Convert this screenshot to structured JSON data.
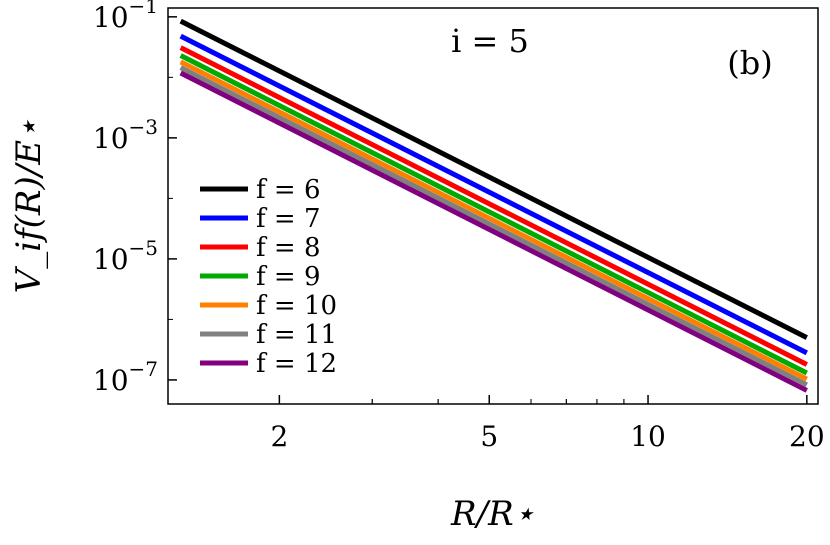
{
  "chart_data": {
    "type": "line",
    "xscale": "log",
    "yscale": "log",
    "xlim": [
      1.23,
      21
    ],
    "ylim": [
      4e-08,
      0.14
    ],
    "x": [
      1.3,
      20
    ],
    "x_tick_values": [
      2,
      5,
      10,
      20
    ],
    "x_tick_labels": [
      "2",
      "5",
      "10",
      "20"
    ],
    "y_tick_values": [
      0.1,
      0.001,
      1e-05,
      1e-07
    ],
    "y_tick_bases": [
      "10",
      "10",
      "10",
      "10"
    ],
    "y_tick_exponents": [
      "−1",
      "−3",
      "−5",
      "−7"
    ],
    "xlabel": "R/R⋆",
    "ylabel": "V_if(R)/E⋆",
    "annotation": "i = 5",
    "panel_label": "(b)",
    "legend_placement": "lower-left",
    "grid": false,
    "series": [
      {
        "name": "f = 6",
        "color": "#000000",
        "values": [
          0.085,
          5e-07
        ]
      },
      {
        "name": "f = 7",
        "color": "#0000ff",
        "values": [
          0.048,
          2.8e-07
        ]
      },
      {
        "name": "f = 8",
        "color": "#ff0000",
        "values": [
          0.031,
          1.8e-07
        ]
      },
      {
        "name": "f = 9",
        "color": "#00aa00",
        "values": [
          0.023,
          1.3e-07
        ]
      },
      {
        "name": "f = 10",
        "color": "#ff8000",
        "values": [
          0.018,
          1.03e-07
        ]
      },
      {
        "name": "f = 11",
        "color": "#808080",
        "values": [
          0.0145,
          8.3e-08
        ]
      },
      {
        "name": "f = 12",
        "color": "#800080",
        "values": [
          0.0118,
          6.7e-08
        ]
      }
    ]
  }
}
